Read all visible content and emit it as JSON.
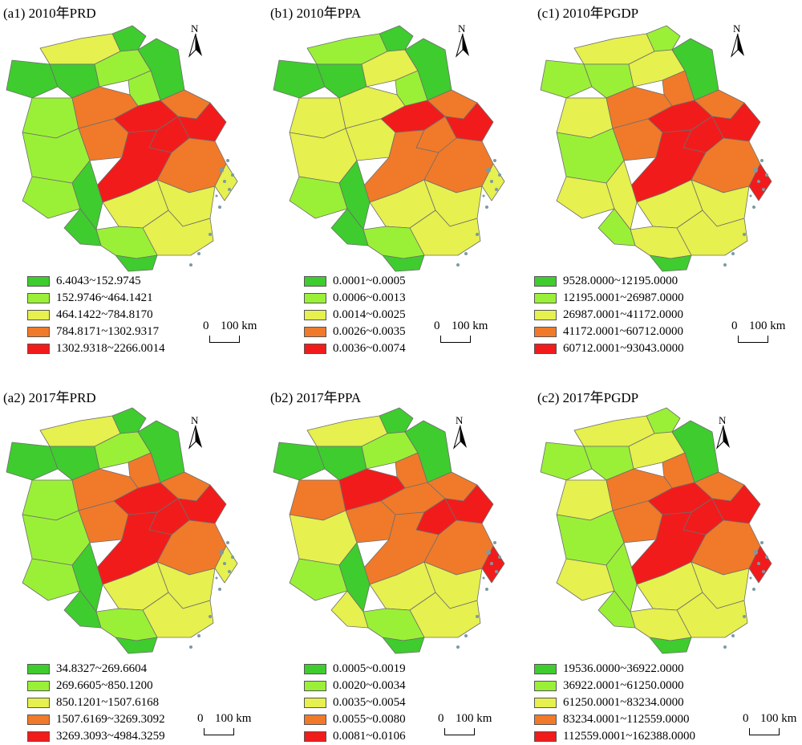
{
  "colors": {
    "class1": "#3fcc2e",
    "class2": "#9af037",
    "class3": "#e6f04e",
    "class4": "#f07a2a",
    "class5": "#f21b1b",
    "boundary": "#6e6e6e",
    "island": "#7a9aa6"
  },
  "north_label": "N",
  "scale_zero": "0",
  "scale_dist": "100 km",
  "panels": [
    {
      "id": "a1",
      "title": "(a1) 2010年PRD",
      "legend": [
        "6.4043~152.9745",
        "152.9746~464.1421",
        "464.1422~784.8170",
        "784.8171~1302.9317",
        "1302.9318~2266.0014"
      ],
      "regions": [
        1,
        3,
        1,
        1,
        2,
        1,
        2,
        2,
        4,
        5,
        4,
        5,
        5,
        4,
        5,
        2,
        2,
        4,
        3,
        1,
        3,
        3,
        3,
        2,
        1,
        1
      ]
    },
    {
      "id": "b1",
      "title": "(b1) 2010年PPA",
      "legend": [
        "0.0001~0.0005",
        "0.0006~0.0013",
        "0.0014~0.0025",
        "0.0026~0.0035",
        "0.0036~0.0074"
      ],
      "regions": [
        1,
        2,
        1,
        1,
        3,
        1,
        2,
        3,
        3,
        5,
        4,
        5,
        4,
        3,
        4,
        3,
        2,
        4,
        3,
        1,
        3,
        3,
        3,
        2,
        1,
        1
      ]
    },
    {
      "id": "c1",
      "title": "(c1) 2010年PGDP",
      "legend": [
        "9528.0000~12195.0000",
        "12195.0001~26987.0000",
        "26987.0001~41172.0000",
        "41172.0001~60712.0000",
        "60712.0001~93043.0000"
      ],
      "regions": [
        2,
        3,
        2,
        2,
        3,
        1,
        4,
        3,
        4,
        5,
        4,
        5,
        5,
        4,
        5,
        2,
        3,
        4,
        5,
        3,
        3,
        3,
        3,
        3,
        2,
        1
      ]
    },
    {
      "id": "a2",
      "title": "(a2) 2017年PRD",
      "legend": [
        "34.8327~269.6604",
        "269.6605~850.1200",
        "850.1201~1507.6168",
        "1507.6169~3269.3092",
        "3269.3093~4984.3259"
      ],
      "regions": [
        1,
        3,
        1,
        1,
        2,
        1,
        4,
        2,
        4,
        5,
        4,
        5,
        5,
        4,
        5,
        2,
        2,
        4,
        3,
        1,
        3,
        3,
        3,
        2,
        1,
        1
      ]
    },
    {
      "id": "b2",
      "title": "(b2) 2017年PPA",
      "legend": [
        "0.0005~0.0019",
        "0.0020~0.0034",
        "0.0035~0.0054",
        "0.0055~0.0080",
        "0.0081~0.0106"
      ],
      "regions": [
        1,
        3,
        1,
        1,
        2,
        1,
        4,
        4,
        5,
        4,
        4,
        5,
        5,
        4,
        4,
        3,
        2,
        4,
        5,
        1,
        3,
        3,
        3,
        2,
        3,
        1
      ]
    },
    {
      "id": "c2",
      "title": "(c2) 2017年PGDP",
      "legend": [
        "19536.0000~36922.0000",
        "36922.0001~61250.0000",
        "61250.0001~83234.0000",
        "83234.0001~112559.0000",
        "112559.0001~162388.0000"
      ],
      "regions": [
        2,
        3,
        2,
        2,
        3,
        1,
        4,
        3,
        4,
        5,
        4,
        5,
        5,
        4,
        5,
        2,
        3,
        4,
        5,
        2,
        3,
        3,
        3,
        3,
        2,
        1
      ]
    }
  ]
}
